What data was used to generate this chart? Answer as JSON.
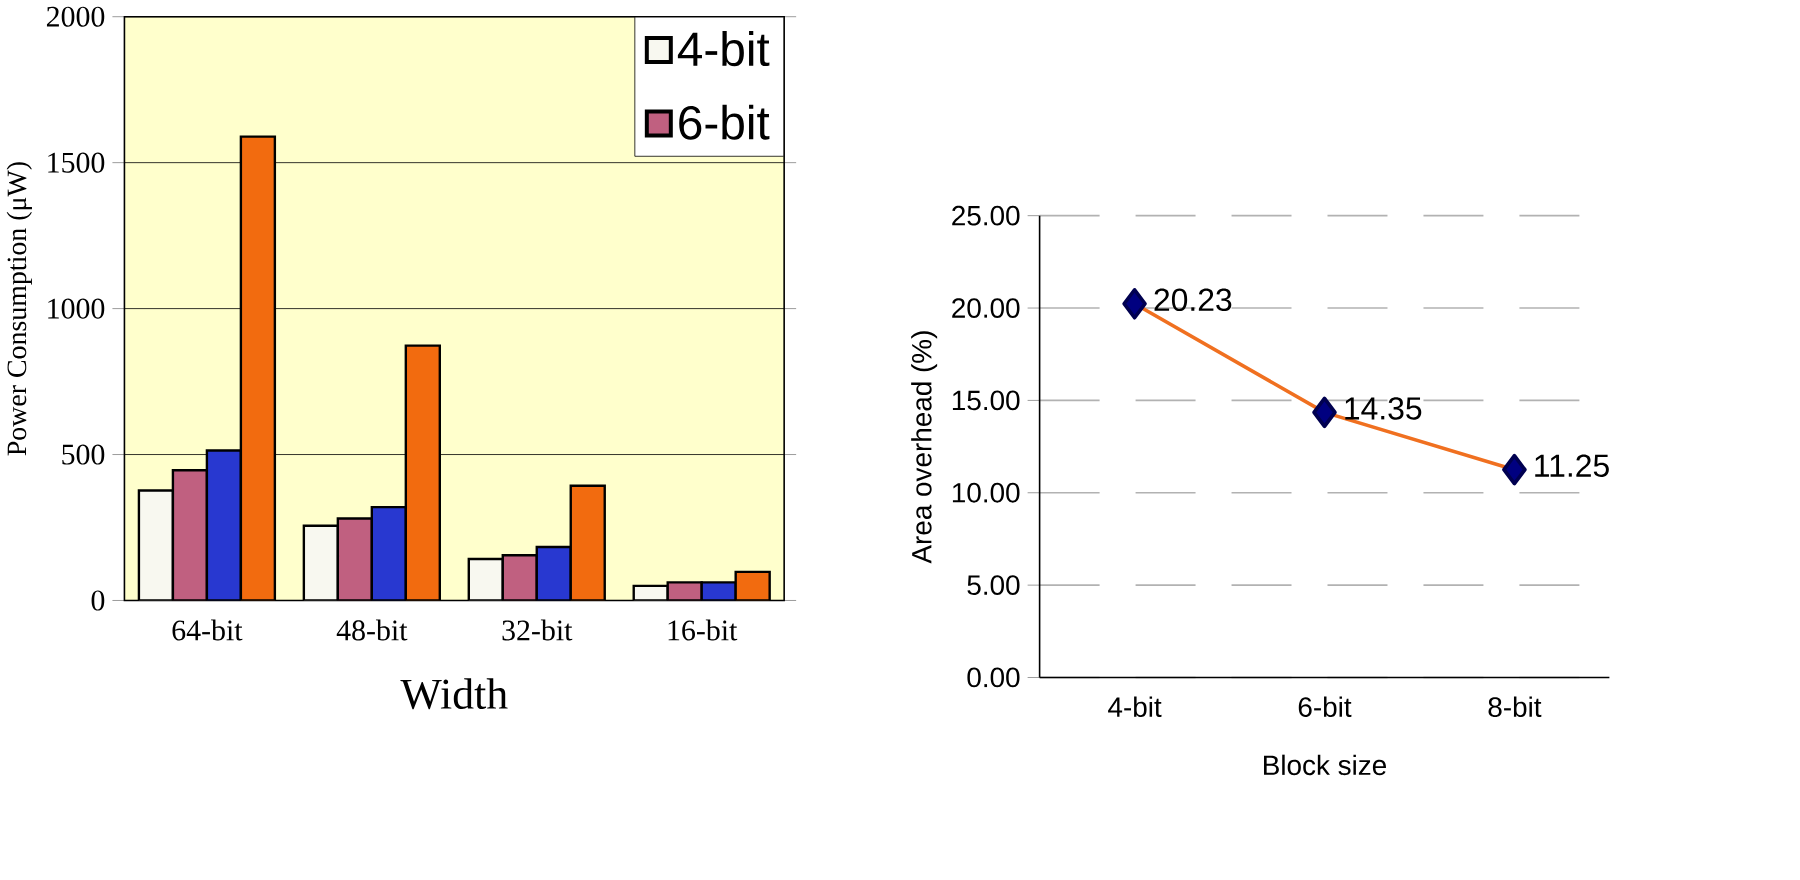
{
  "chart_data": [
    {
      "type": "bar",
      "xlabel": "Width",
      "ylabel": "Power Consumption (μW)",
      "categories": [
        "64-bit",
        "48-bit",
        "32-bit",
        "16-bit"
      ],
      "series": [
        {
          "name": "4-bit",
          "color": "#f8f8f0",
          "values": [
            377,
            256,
            142,
            50
          ]
        },
        {
          "name": "6-bit",
          "color": "#c06080",
          "values": [
            446,
            281,
            155,
            62
          ]
        },
        {
          "color": "#2838d0",
          "values": [
            514,
            320,
            183,
            62
          ]
        },
        {
          "color": "#f26b0f",
          "values": [
            1589,
            873,
            393,
            98
          ]
        }
      ],
      "ylim": [
        0,
        2000
      ],
      "yticks": [
        0,
        500,
        1000,
        1500,
        2000
      ],
      "grid": "y",
      "legend": "top right"
    },
    {
      "type": "line",
      "xlabel": "Block size",
      "ylabel": "Area overhead (%)",
      "categories": [
        "4-bit",
        "6-bit",
        "8-bit"
      ],
      "series": [
        {
          "color": "#f07020",
          "values": [
            20.23,
            14.35,
            11.25
          ]
        }
      ],
      "ylim": [
        0,
        25
      ],
      "yticks": [
        {
          "value": 0,
          "label": "0.00"
        },
        {
          "value": 5,
          "label": "5.00"
        },
        {
          "value": 10,
          "label": "10.00"
        },
        {
          "value": 15,
          "label": "15.00"
        },
        {
          "value": 20,
          "label": "20.00"
        },
        {
          "value": 25,
          "label": "25.00"
        }
      ],
      "grid": "y",
      "marker": "diamond",
      "data_labels": true
    }
  ]
}
